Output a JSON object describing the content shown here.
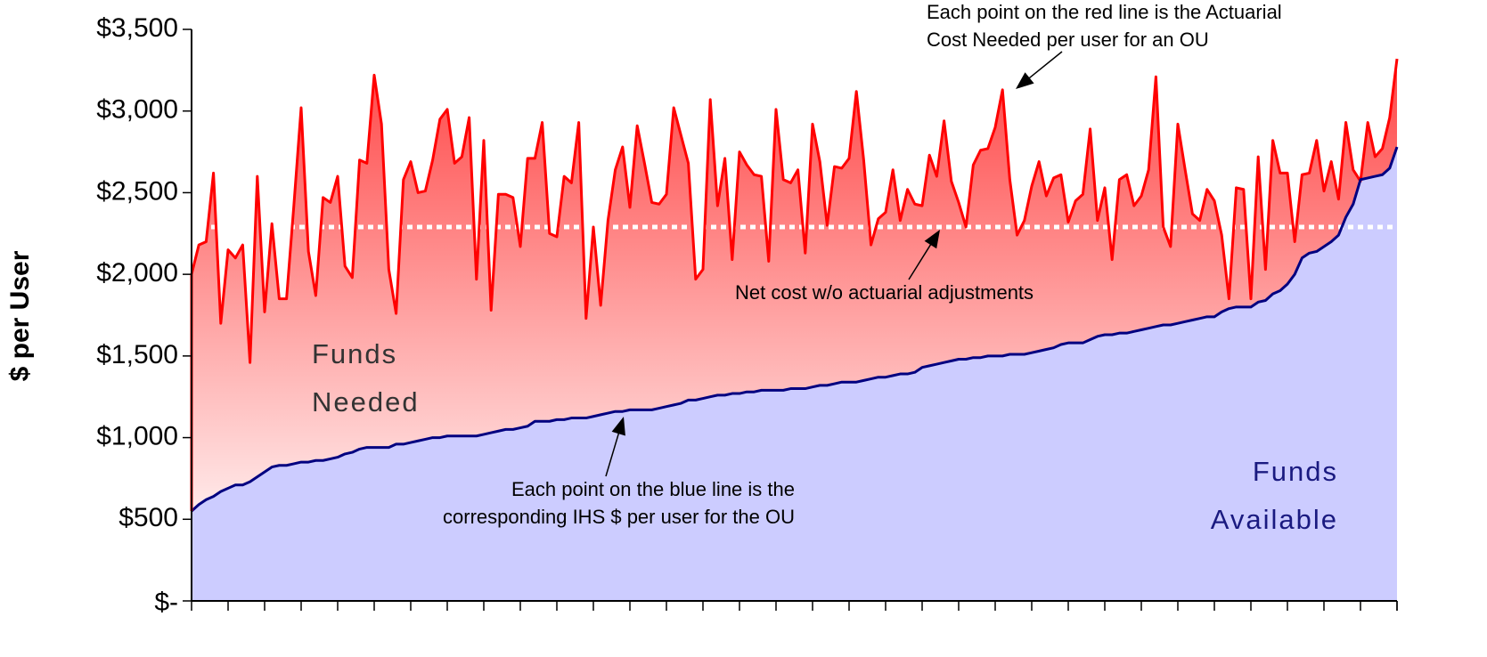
{
  "chart_data": {
    "type": "area",
    "ylabel": "$ per User",
    "ylim": [
      0,
      3500
    ],
    "yticks": [
      {
        "value": 0,
        "label": "$-"
      },
      {
        "value": 500,
        "label": "$500"
      },
      {
        "value": 1000,
        "label": "$1,000"
      },
      {
        "value": 1500,
        "label": "$1,500"
      },
      {
        "value": 2000,
        "label": "$2,000"
      },
      {
        "value": 2500,
        "label": "$2,500"
      },
      {
        "value": 3000,
        "label": "$3,000"
      },
      {
        "value": 3500,
        "label": "$3,500"
      }
    ],
    "categories": [
      null,
      null,
      null,
      null,
      null,
      null,
      null,
      null,
      null,
      null,
      null,
      null,
      null,
      null,
      null,
      null,
      null,
      null,
      null,
      null,
      null,
      null,
      null,
      null,
      null,
      null,
      null,
      null,
      null,
      null,
      null,
      null,
      null,
      null,
      null,
      null,
      null,
      null,
      null,
      null,
      null,
      null,
      null,
      null,
      null,
      null,
      null,
      null,
      null,
      null,
      null,
      null,
      null,
      null,
      null,
      null,
      null,
      null,
      null,
      null,
      null,
      null,
      null,
      null,
      null,
      null,
      null,
      null,
      null,
      null,
      null,
      null,
      null,
      null,
      null,
      null,
      null,
      null,
      null,
      null,
      null,
      null,
      null,
      null,
      null,
      null,
      null,
      null,
      null,
      null,
      null,
      null,
      null,
      null,
      null,
      null,
      null,
      null,
      null,
      null,
      null,
      null,
      null,
      null,
      null,
      null,
      null,
      null,
      null,
      null,
      null,
      null,
      null,
      null,
      null,
      null,
      null,
      null,
      null,
      null,
      null,
      null,
      null,
      null,
      null,
      null,
      null,
      null,
      null,
      null,
      null,
      null,
      null,
      null,
      null,
      null,
      null,
      null,
      null,
      null,
      null,
      null,
      null,
      null,
      null,
      null,
      null,
      null,
      null,
      null,
      null,
      null,
      null,
      null,
      null,
      null,
      null,
      null,
      null,
      null,
      null,
      null,
      null,
      null,
      null,
      null
    ],
    "series": [
      {
        "color": "#ff0000",
        "fill": "#ff3b3b",
        "values": [
          2000,
          2180,
          2200,
          2620,
          1700,
          2150,
          2100,
          2180,
          1460,
          2600,
          1770,
          2310,
          1850,
          1850,
          2420,
          3020,
          2140,
          1870,
          2470,
          2440,
          2600,
          2050,
          1980,
          2700,
          2680,
          3220,
          2920,
          2030,
          1760,
          2580,
          2690,
          2500,
          2510,
          2700,
          2950,
          3010,
          2680,
          2720,
          2960,
          1970,
          2820,
          1780,
          2490,
          2490,
          2470,
          2170,
          2710,
          2710,
          2930,
          2250,
          2230,
          2600,
          2560,
          2930,
          1730,
          2290,
          1810,
          2330,
          2640,
          2780,
          2410,
          2910,
          2680,
          2440,
          2430,
          2490,
          3020,
          2850,
          2680,
          1970,
          2030,
          3070,
          2420,
          2710,
          2090,
          2750,
          2670,
          2610,
          2600,
          2080,
          3010,
          2580,
          2560,
          2640,
          2130,
          2920,
          2690,
          2300,
          2660,
          2650,
          2710,
          3120,
          2700,
          2180,
          2340,
          2380,
          2640,
          2330,
          2520,
          2430,
          2420,
          2730,
          2600,
          2940,
          2570,
          2440,
          2290,
          2670,
          2760,
          2770,
          2900,
          3130,
          2580,
          2240,
          2330,
          2540,
          2690,
          2480,
          2590,
          2610,
          2320,
          2450,
          2490,
          2890,
          2330,
          2530,
          2090,
          2580,
          2610,
          2420,
          2480,
          2640,
          3210,
          2290,
          2170,
          2920,
          2640,
          2370,
          2330,
          2520,
          2450,
          2240,
          1850,
          2530,
          2520,
          1850,
          2720,
          2030,
          2820,
          2620,
          2620,
          2200,
          2610,
          2620,
          2820,
          2510,
          2690,
          2460,
          2930,
          2640,
          2570,
          2930,
          2720,
          2770,
          2960,
          3320
        ]
      },
      {
        "color": "#000080",
        "fill": "#ccccff",
        "values": [
          550,
          590,
          620,
          640,
          670,
          690,
          710,
          710,
          730,
          760,
          790,
          820,
          830,
          830,
          840,
          850,
          850,
          860,
          860,
          870,
          880,
          900,
          910,
          930,
          940,
          940,
          940,
          940,
          960,
          960,
          970,
          980,
          990,
          1000,
          1000,
          1010,
          1010,
          1010,
          1010,
          1010,
          1020,
          1030,
          1040,
          1050,
          1050,
          1060,
          1070,
          1100,
          1100,
          1100,
          1110,
          1110,
          1120,
          1120,
          1120,
          1130,
          1140,
          1150,
          1160,
          1160,
          1170,
          1170,
          1170,
          1170,
          1180,
          1190,
          1200,
          1210,
          1230,
          1230,
          1240,
          1250,
          1260,
          1260,
          1270,
          1270,
          1280,
          1280,
          1290,
          1290,
          1290,
          1290,
          1300,
          1300,
          1300,
          1310,
          1320,
          1320,
          1330,
          1340,
          1340,
          1340,
          1350,
          1360,
          1370,
          1370,
          1380,
          1390,
          1390,
          1400,
          1430,
          1440,
          1450,
          1460,
          1470,
          1480,
          1480,
          1490,
          1490,
          1500,
          1500,
          1500,
          1510,
          1510,
          1510,
          1520,
          1530,
          1540,
          1550,
          1570,
          1580,
          1580,
          1580,
          1600,
          1620,
          1630,
          1630,
          1640,
          1640,
          1650,
          1660,
          1670,
          1680,
          1690,
          1690,
          1700,
          1710,
          1720,
          1730,
          1740,
          1740,
          1770,
          1790,
          1800,
          1800,
          1800,
          1830,
          1840,
          1880,
          1900,
          1940,
          2000,
          2100,
          2130,
          2140,
          2170,
          2200,
          2240,
          2350,
          2430,
          2580,
          2590,
          2600,
          2610,
          2650,
          2780
        ]
      }
    ],
    "reference_line": {
      "value": 2290,
      "color": "#ffffff"
    },
    "annotations": [
      {
        "lines": [
          "Each point on the red line is the Actuarial",
          "Cost Needed per user for an OU"
        ]
      },
      {
        "lines": [
          "Net cost w/o actuarial adjustments"
        ]
      },
      {
        "lines": [
          "Each point on the blue line is the",
          "corresponding IHS $ per user for the OU"
        ]
      }
    ],
    "area_labels": [
      {
        "lines": [
          "Funds",
          "Needed"
        ],
        "color": "#333333"
      },
      {
        "lines": [
          "Funds",
          "Available"
        ],
        "color": "#1a1a80"
      }
    ]
  }
}
